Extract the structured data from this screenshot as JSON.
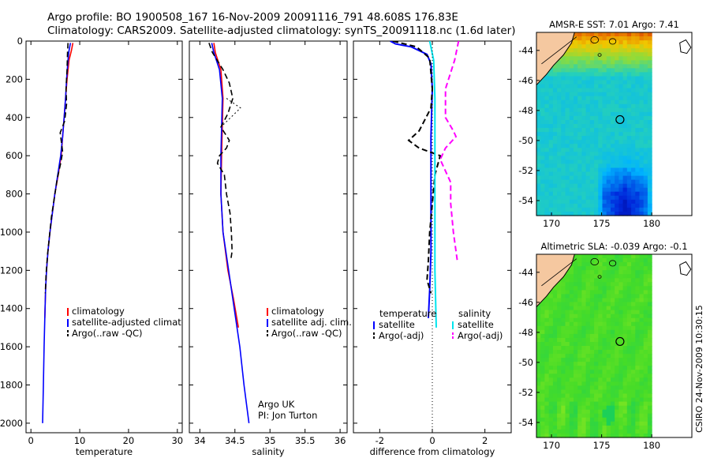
{
  "header": {
    "line1": "Argo profile: BO 1900508_167 16-Nov-2009 20091116_791 48.608S 176.83E",
    "line2": "Climatology: CARS2009. Satellite-adjusted climatology: synTS_20091118.nc (1.6d later)"
  },
  "footer": {
    "stamp": "CSIRO 24-Nov-2009 10:30:15"
  },
  "colors": {
    "climatology": "#ff0000",
    "satellite": "#0000ff",
    "argo": "#000000",
    "satellite_sal_diff": "#00e5ee",
    "argo_sal_diff": "#ff00ff",
    "land": "#f5c8a0"
  },
  "chart_data": [
    {
      "type": "line",
      "id": "temperature",
      "xlabel": "temperature",
      "xlim": [
        -1,
        31
      ],
      "ylim": [
        2050,
        0
      ],
      "xticks": [
        0,
        10,
        20,
        30
      ],
      "yticks": [
        0,
        200,
        400,
        600,
        800,
        1000,
        1200,
        1400,
        1600,
        1800,
        2000
      ],
      "legend": [
        "climatology",
        "satellite-adjusted climatology",
        "Argo(..raw -QC)"
      ],
      "series": [
        {
          "name": "climatology",
          "color": "#ff0000",
          "width": 1.6,
          "dash": "",
          "points": [
            [
              8.6,
              10
            ],
            [
              8.3,
              50
            ],
            [
              7.8,
              100
            ],
            [
              7.4,
              200
            ],
            [
              7.1,
              300
            ],
            [
              6.8,
              400
            ],
            [
              6.5,
              500
            ],
            [
              6.2,
              600
            ],
            [
              5.6,
              700
            ],
            [
              4.9,
              800
            ],
            [
              4.4,
              900
            ],
            [
              3.9,
              1000
            ],
            [
              3.5,
              1100
            ],
            [
              3.2,
              1200
            ],
            [
              3.0,
              1300
            ],
            [
              2.85,
              1450
            ]
          ]
        },
        {
          "name": "satellite-adjusted climatology",
          "color": "#0000ff",
          "width": 1.6,
          "dash": "",
          "points": [
            [
              8.1,
              10
            ],
            [
              7.8,
              50
            ],
            [
              7.6,
              100
            ],
            [
              7.3,
              200
            ],
            [
              7.1,
              300
            ],
            [
              6.8,
              400
            ],
            [
              6.5,
              500
            ],
            [
              6.1,
              600
            ],
            [
              5.5,
              700
            ],
            [
              4.9,
              800
            ],
            [
              4.4,
              900
            ],
            [
              3.9,
              1000
            ],
            [
              3.5,
              1100
            ],
            [
              3.2,
              1200
            ],
            [
              3.0,
              1300
            ],
            [
              2.85,
              1450
            ],
            [
              2.7,
              1600
            ],
            [
              2.55,
              1800
            ],
            [
              2.4,
              2000
            ]
          ]
        },
        {
          "name": "Argo(..raw -QC)",
          "color": "#000000",
          "width": 1.6,
          "dash": "7,4",
          "points": [
            [
              7.6,
              10
            ],
            [
              7.5,
              60
            ],
            [
              7.4,
              150
            ],
            [
              7.2,
              250
            ],
            [
              7.3,
              330
            ],
            [
              6.9,
              420
            ],
            [
              6.0,
              480
            ],
            [
              6.3,
              540
            ],
            [
              6.5,
              580
            ],
            [
              6.1,
              640
            ],
            [
              5.4,
              720
            ],
            [
              4.8,
              820
            ],
            [
              4.2,
              920
            ],
            [
              3.8,
              1020
            ],
            [
              3.4,
              1120
            ],
            [
              3.1,
              1220
            ],
            [
              2.95,
              1320
            ]
          ]
        }
      ]
    },
    {
      "type": "line",
      "id": "salinity",
      "xlabel": "salinity",
      "xlim": [
        33.85,
        36.1
      ],
      "ylim": [
        2050,
        0
      ],
      "xticks": [
        34,
        34.5,
        35,
        35.5,
        36
      ],
      "xticklabels": [
        "34",
        "34.5",
        "35",
        "35.5",
        "36"
      ],
      "legend": [
        "climatology",
        "satellite adj. clim.",
        "Argo(..raw -QC)"
      ],
      "annotation": [
        "Argo UK",
        "PI: Jon Turton"
      ],
      "series": [
        {
          "name": "climatology",
          "color": "#ff0000",
          "width": 1.6,
          "dash": "",
          "points": [
            [
              34.2,
              10
            ],
            [
              34.22,
              60
            ],
            [
              34.3,
              150
            ],
            [
              34.33,
              300
            ],
            [
              34.32,
              450
            ],
            [
              34.31,
              600
            ],
            [
              34.3,
              800
            ],
            [
              34.33,
              1000
            ],
            [
              34.4,
              1200
            ],
            [
              34.48,
              1350
            ],
            [
              34.55,
              1500
            ]
          ]
        },
        {
          "name": "satellite adj. clim.",
          "color": "#0000ff",
          "width": 1.6,
          "dash": "",
          "points": [
            [
              34.17,
              10
            ],
            [
              34.2,
              60
            ],
            [
              34.28,
              150
            ],
            [
              34.32,
              300
            ],
            [
              34.31,
              450
            ],
            [
              34.3,
              600
            ],
            [
              34.3,
              800
            ],
            [
              34.33,
              1000
            ],
            [
              34.41,
              1200
            ],
            [
              34.49,
              1400
            ],
            [
              34.57,
              1600
            ],
            [
              34.63,
              1800
            ],
            [
              34.7,
              2000
            ]
          ]
        },
        {
          "name": "Argo(..raw -QC)",
          "color": "#000000",
          "width": 1.6,
          "dash": "7,4",
          "points": [
            [
              34.13,
              10
            ],
            [
              34.18,
              60
            ],
            [
              34.33,
              150
            ],
            [
              34.42,
              220
            ],
            [
              34.47,
              300
            ],
            [
              34.4,
              380
            ],
            [
              34.3,
              450
            ],
            [
              34.42,
              520
            ],
            [
              34.38,
              560
            ],
            [
              34.28,
              600
            ],
            [
              34.25,
              640
            ],
            [
              34.35,
              700
            ],
            [
              34.38,
              800
            ],
            [
              34.43,
              900
            ],
            [
              34.45,
              1000
            ],
            [
              34.46,
              1100
            ],
            [
              34.44,
              1150
            ]
          ]
        },
        {
          "name": "argo-qc-flagged",
          "color": "#000000",
          "width": 1.0,
          "dash": "2,3",
          "points": [
            [
              34.38,
              300
            ],
            [
              34.58,
              350
            ],
            [
              34.3,
              450
            ]
          ]
        }
      ]
    },
    {
      "type": "line",
      "id": "difference",
      "xlabel": "difference from climatology",
      "xlim": [
        -3,
        3
      ],
      "ylim": [
        2050,
        0
      ],
      "xticks": [
        -2,
        0,
        2
      ],
      "legend_headers": [
        "temperature",
        "salinity"
      ],
      "legend": [
        "satellite",
        "Argo(-adj)",
        "satellite",
        "Argo(-adj)"
      ],
      "series": [
        {
          "name": "temperature satellite",
          "color": "#0000ff",
          "width": 2.0,
          "dash": "",
          "points": [
            [
              -1.6,
              0
            ],
            [
              -1.4,
              15
            ],
            [
              -0.8,
              30
            ],
            [
              -0.2,
              70
            ],
            [
              -0.05,
              120
            ],
            [
              0.0,
              250
            ],
            [
              -0.05,
              500
            ],
            [
              -0.05,
              800
            ],
            [
              -0.05,
              1100
            ],
            [
              -0.1,
              1300
            ],
            [
              -0.15,
              1450
            ]
          ]
        },
        {
          "name": "temperature Argo(-adj)",
          "color": "#000000",
          "width": 2.0,
          "dash": "7,4",
          "points": [
            [
              -1.5,
              0
            ],
            [
              -0.6,
              30
            ],
            [
              -0.1,
              90
            ],
            [
              0.0,
              250
            ],
            [
              -0.05,
              350
            ],
            [
              -0.5,
              470
            ],
            [
              -0.9,
              520
            ],
            [
              -0.5,
              560
            ],
            [
              0.3,
              600
            ],
            [
              0.1,
              700
            ],
            [
              0.0,
              850
            ],
            [
              -0.1,
              1000
            ],
            [
              -0.15,
              1150
            ],
            [
              -0.2,
              1250
            ],
            [
              -0.05,
              1320
            ]
          ]
        },
        {
          "name": "salinity satellite",
          "color": "#00e5ee",
          "width": 2.0,
          "dash": "",
          "points": [
            [
              -0.1,
              0
            ],
            [
              0.05,
              100
            ],
            [
              0.1,
              300
            ],
            [
              0.1,
              600
            ],
            [
              0.1,
              900
            ],
            [
              0.1,
              1200
            ],
            [
              0.15,
              1500
            ]
          ]
        },
        {
          "name": "salinity Argo(-adj)",
          "color": "#ff00ff",
          "width": 2.0,
          "dash": "7,4",
          "points": [
            [
              1.0,
              0
            ],
            [
              0.85,
              100
            ],
            [
              0.5,
              250
            ],
            [
              0.5,
              400
            ],
            [
              0.8,
              470
            ],
            [
              0.9,
              500
            ],
            [
              0.5,
              560
            ],
            [
              0.3,
              620
            ],
            [
              0.7,
              740
            ],
            [
              0.7,
              850
            ],
            [
              0.8,
              1000
            ],
            [
              0.95,
              1150
            ]
          ]
        },
        {
          "name": "zero-line",
          "color": "#000000",
          "width": 1.0,
          "dash": "1,3",
          "points": [
            [
              0,
              0
            ],
            [
              0,
              2050
            ]
          ]
        }
      ]
    },
    {
      "type": "heatmap",
      "id": "sst-map",
      "title": "AMSR-E SST: 7.01 Argo: 7.41",
      "xlim": [
        168.5,
        184
      ],
      "ylim": [
        -55,
        -42.8
      ],
      "xticks": [
        170,
        175,
        180
      ],
      "yticks": [
        -44,
        -46,
        -48,
        -50,
        -52,
        -54
      ],
      "palette": "sst",
      "float_position": [
        176.83,
        -48.608
      ]
    },
    {
      "type": "heatmap",
      "id": "sla-map",
      "title": "Altimetric SLA: -0.039 Argo: -0.1",
      "xlim": [
        168.5,
        184
      ],
      "ylim": [
        -55,
        -42.8
      ],
      "xticks": [
        170,
        175,
        180
      ],
      "yticks": [
        -44,
        -46,
        -48,
        -50,
        -52,
        -54
      ],
      "palette": "sla",
      "float_position": [
        176.83,
        -48.608
      ]
    }
  ]
}
